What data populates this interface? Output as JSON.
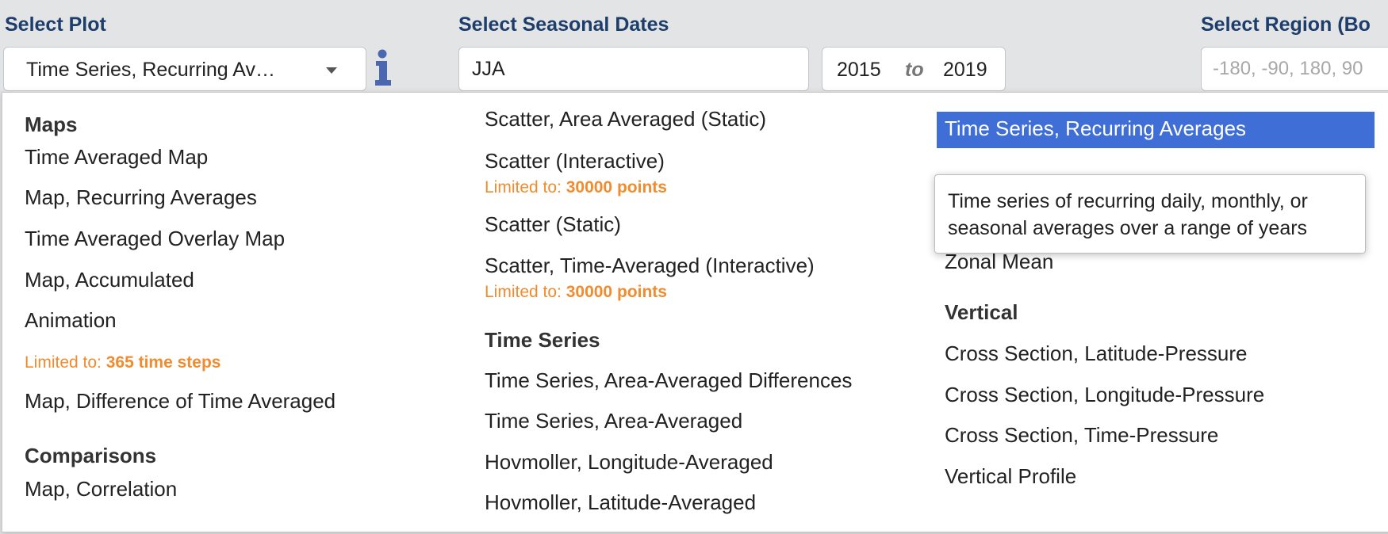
{
  "labels": {
    "select_plot": "Select Plot",
    "select_seasonal_dates": "Select Seasonal Dates",
    "select_region": "Select Region (Bo"
  },
  "plot_select": {
    "value": "Time Series, Recurring Av…"
  },
  "season_input": {
    "value": "JJA"
  },
  "year_range": {
    "start": "2015",
    "to": "to",
    "end": "2019"
  },
  "region_input": {
    "placeholder": "-180, -90, 180, 90"
  },
  "menu": {
    "maps": {
      "title": "Maps",
      "time_averaged_map": "Time Averaged Map",
      "map_recurring_averages": "Map, Recurring Averages",
      "time_averaged_overlay_map": "Time Averaged Overlay Map",
      "map_accumulated": "Map, Accumulated",
      "animation": "Animation",
      "animation_limit_prefix": "Limited to: ",
      "animation_limit_value": "365 time steps",
      "map_difference": "Map, Difference of Time Averaged"
    },
    "comparisons": {
      "title": "Comparisons",
      "map_correlation": "Map, Correlation",
      "scatter_area_averaged_static": "Scatter, Area Averaged (Static)",
      "scatter_interactive": "Scatter (Interactive)",
      "scatter_interactive_limit_prefix": "Limited to: ",
      "scatter_interactive_limit_value": "30000 points",
      "scatter_static": "Scatter (Static)",
      "scatter_time_averaged_interactive": "Scatter, Time-Averaged (Interactive)",
      "scatter_time_averaged_limit_prefix": "Limited to: ",
      "scatter_time_averaged_limit_value": "30000 points"
    },
    "time_series": {
      "title": "Time Series",
      "area_averaged_differences": "Time Series, Area-Averaged Differences",
      "area_averaged": "Time Series, Area-Averaged",
      "hovmoller_longitude": "Hovmoller, Longitude-Averaged",
      "hovmoller_latitude": "Hovmoller, Latitude-Averaged",
      "recurring_averages": "Time Series, Recurring Averages",
      "zonal_mean": "Zonal Mean"
    },
    "vertical": {
      "title": "Vertical",
      "cross_lat_pressure": "Cross Section, Latitude-Pressure",
      "cross_lon_pressure": "Cross Section, Longitude-Pressure",
      "cross_time_pressure": "Cross Section, Time-Pressure",
      "vertical_profile": "Vertical Profile"
    }
  },
  "tooltip": {
    "line1": "Time series of recurring daily, monthly, or",
    "line2": "seasonal averages over a range of years"
  },
  "colors": {
    "label_blue": "#1d3d6b",
    "selected_bg": "#3f6ed6",
    "limit_orange": "#f08c2e",
    "info_icon": "#4a67b0"
  }
}
